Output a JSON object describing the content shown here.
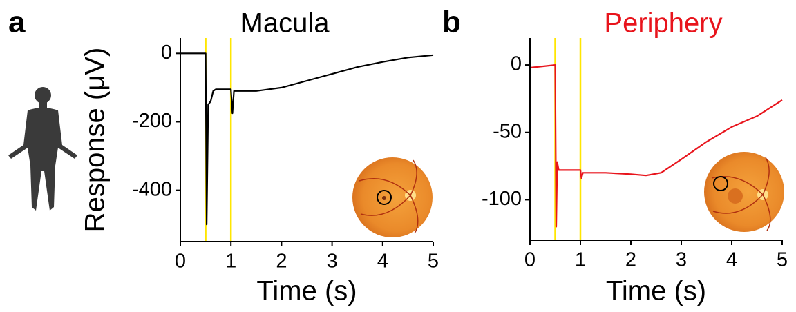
{
  "chart_data": [
    {
      "type": "line",
      "panel_label": "a",
      "title": "Macula",
      "title_color": "#000000",
      "y_label": "Response (μV)",
      "x_label": "Time (s)",
      "x": [
        0,
        0.5,
        0.52,
        0.55,
        0.6,
        0.65,
        0.7,
        1.0,
        1.03,
        1.06,
        1.5,
        2,
        2.5,
        3,
        3.5,
        4,
        4.5,
        5
      ],
      "series": [
        {
          "color": "#000000",
          "values": [
            0,
            0,
            -500,
            -150,
            -140,
            -110,
            -105,
            -105,
            -175,
            -110,
            -110,
            -100,
            -80,
            -60,
            -40,
            -25,
            -12,
            -5
          ]
        }
      ],
      "markers": [
        0.5,
        1
      ],
      "marker_color": "#ffe600",
      "xlim": [
        0,
        5
      ],
      "xticks": [
        0,
        1,
        2,
        3,
        4,
        5
      ],
      "ylim": [
        -550,
        45
      ],
      "yticks": [
        0,
        -200,
        -400
      ]
    },
    {
      "type": "line",
      "panel_label": "b",
      "title": "Periphery",
      "title_color": "#e8141c",
      "x_label": "Time (s)",
      "x": [
        0,
        0.5,
        0.52,
        0.54,
        0.57,
        1.0,
        1.02,
        1.05,
        1.5,
        2,
        2.3,
        2.6,
        3,
        3.5,
        4,
        4.5,
        5
      ],
      "series": [
        {
          "color": "#e8141c",
          "values": [
            -2,
            0,
            -120,
            -72,
            -78,
            -78,
            -84,
            -80,
            -80,
            -81,
            -82,
            -80,
            -70,
            -57,
            -46,
            -38,
            -26
          ]
        }
      ],
      "markers": [
        0.5,
        1
      ],
      "marker_color": "#ffe600",
      "xlim": [
        0,
        5
      ],
      "xticks": [
        0,
        1,
        2,
        3,
        4,
        5
      ],
      "ylim": [
        -130,
        20
      ],
      "yticks": [
        0,
        -50,
        -100
      ]
    }
  ]
}
